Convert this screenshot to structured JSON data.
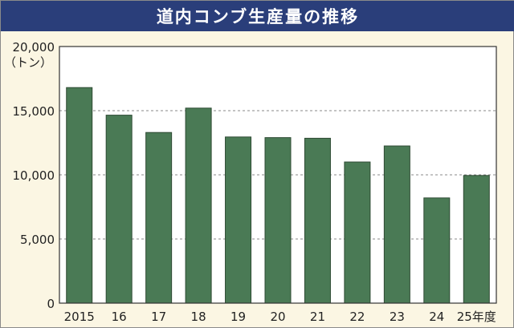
{
  "chart_data": {
    "type": "bar",
    "title": "道内コンブ生産量の推移",
    "unit": "（トン）",
    "categories": [
      "2015",
      "16",
      "17",
      "18",
      "19",
      "20",
      "21",
      "22",
      "23",
      "24",
      "25年度"
    ],
    "values": [
      16800,
      14650,
      13300,
      15200,
      12950,
      12900,
      12850,
      11000,
      12250,
      8200,
      9950
    ],
    "ylim": [
      0,
      20000
    ],
    "yticks": [
      0,
      5000,
      10000,
      15000,
      20000
    ],
    "ytick_labels": [
      "0",
      "5,000",
      "10,000",
      "15,000",
      "20,000"
    ],
    "grid": true,
    "colors": {
      "bar": "#4a7a55",
      "bar_edge": "#2e4a33",
      "title_bg": "#2a3e7a",
      "background": "#fbf6e3"
    }
  }
}
